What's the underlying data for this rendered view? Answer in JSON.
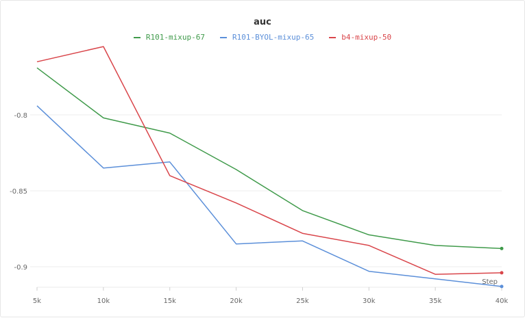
{
  "chart_data": {
    "type": "line",
    "title": "auc",
    "xlabel": "Step",
    "ylabel": "",
    "x": [
      5000,
      10000,
      15000,
      20000,
      25000,
      30000,
      35000,
      40000
    ],
    "x_tick_labels": [
      "5k",
      "10k",
      "15k",
      "20k",
      "25k",
      "30k",
      "35k",
      "40k"
    ],
    "xlim": [
      5000,
      40000
    ],
    "y_ticks": [
      -0.8,
      -0.85,
      -0.9
    ],
    "ylim": [
      -0.912,
      -0.766
    ],
    "grid": true,
    "legend_position": "top-center",
    "series": [
      {
        "name": "R101-mixup-67",
        "color": "#3f9a4a",
        "values": [
          -0.769,
          -0.802,
          -0.812,
          -0.836,
          -0.863,
          -0.879,
          -0.886,
          -0.888
        ]
      },
      {
        "name": "R101-BYOL-mixup-65",
        "color": "#5b8fd9",
        "values": [
          -0.794,
          -0.835,
          -0.831,
          -0.885,
          -0.883,
          -0.903,
          -0.908,
          -0.913
        ]
      },
      {
        "name": "b4-mixup-50",
        "color": "#d9454a",
        "values": [
          -0.765,
          -0.755,
          -0.84,
          -0.858,
          -0.878,
          -0.886,
          -0.905,
          -0.904
        ]
      }
    ]
  }
}
